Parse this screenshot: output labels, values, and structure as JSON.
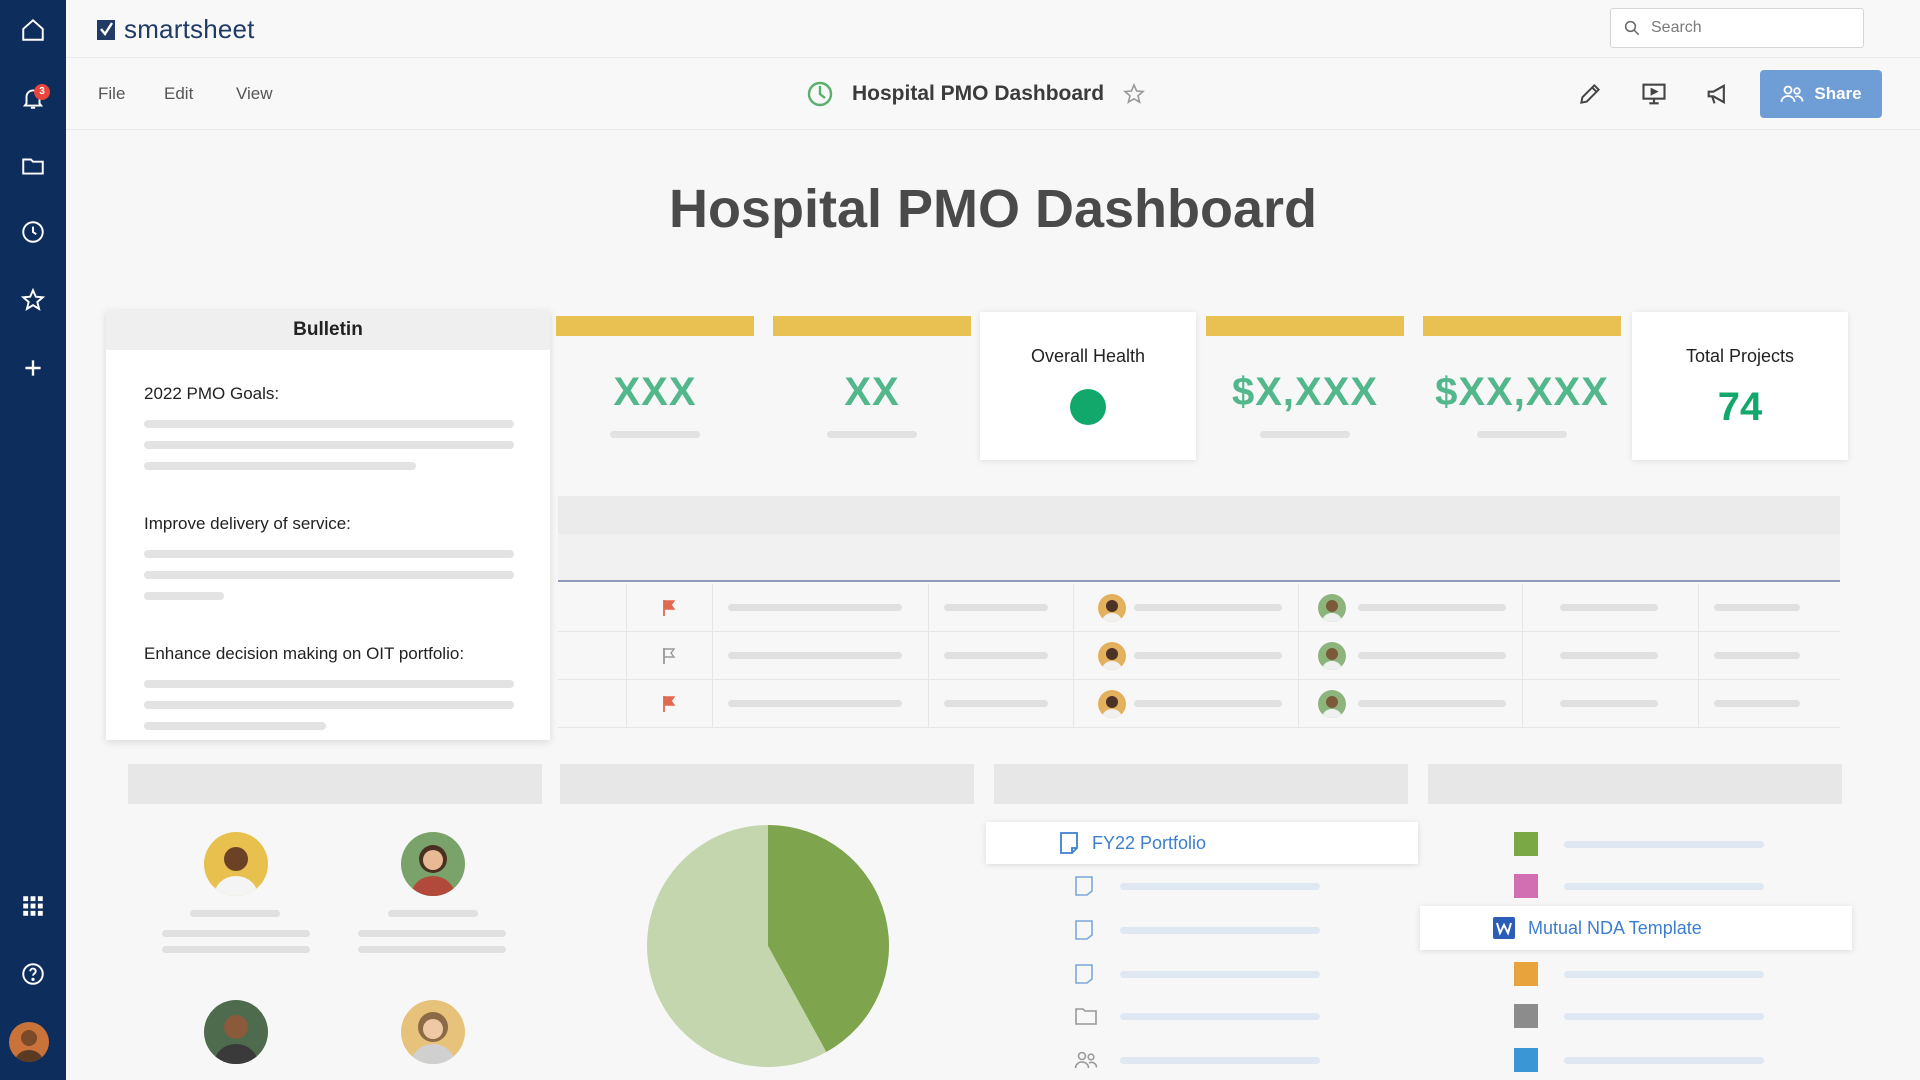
{
  "app": {
    "logo_text": "smartsheet"
  },
  "rail": {
    "notifications_count": "3"
  },
  "search": {
    "placeholder": "Search"
  },
  "menu": {
    "file": "File",
    "edit": "Edit",
    "view": "View"
  },
  "sheet": {
    "title": "Hospital PMO Dashboard"
  },
  "toolbar": {
    "share_label": "Share"
  },
  "dashboard": {
    "title": "Hospital PMO Dashboard",
    "bulletin": {
      "title": "Bulletin",
      "goals": [
        "2022 PMO Goals:",
        "Improve delivery of service:",
        "Enhance decision making on OIT portfolio:"
      ]
    },
    "metrics": [
      "XXX",
      "XX",
      "$X,XXX",
      "$XX,XXX"
    ],
    "health": {
      "label": "Overall Health",
      "status_color": "#12a86b"
    },
    "total_projects": {
      "label": "Total Projects",
      "value": "74"
    },
    "links": {
      "portfolio": "FY22 Portfolio",
      "nda": "Mutual NDA Template"
    },
    "legend_colors": [
      "#7aa845",
      "#d26fb2",
      "#e8a33c",
      "#8c8c8c",
      "#3a96d4"
    ],
    "pie": {
      "slices": [
        {
          "value": 42,
          "color": "#7ea44d"
        },
        {
          "value": 58,
          "color": "#c4d6ad"
        }
      ]
    }
  },
  "colors": {
    "accent": "#6f9ed6",
    "rail": "#0d2d5c",
    "metric_bar": "#e9c052",
    "metric_text": "#52b78a"
  }
}
